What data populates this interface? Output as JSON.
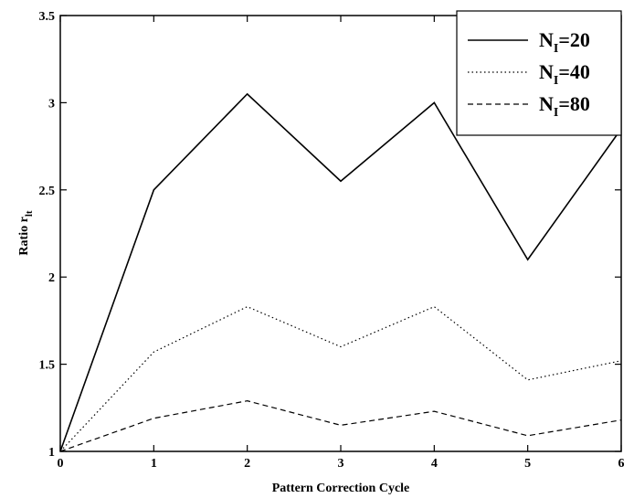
{
  "chart_data": {
    "type": "line",
    "title": "",
    "xlabel": "Pattern Correction Cycle",
    "ylabel_main": "Ratio r",
    "ylabel_sub": "lt",
    "x": [
      0,
      1,
      2,
      3,
      4,
      5,
      6
    ],
    "xlim": [
      0,
      6
    ],
    "ylim": [
      1,
      3.5
    ],
    "xticks": [
      "0",
      "1",
      "2",
      "3",
      "4",
      "5",
      "6"
    ],
    "yticks": [
      "1",
      "1.5",
      "2",
      "2.5",
      "3",
      "3.5"
    ],
    "grid": false,
    "legend_position": "top-right",
    "series": [
      {
        "name": "N",
        "name_sub": "I",
        "name_suffix": "=20",
        "style": "solid",
        "values": [
          1.0,
          2.5,
          3.05,
          2.55,
          3.0,
          2.1,
          2.85
        ]
      },
      {
        "name": "N",
        "name_sub": "I",
        "name_suffix": "=40",
        "style": "dotted",
        "values": [
          1.0,
          1.57,
          1.83,
          1.6,
          1.83,
          1.41,
          1.52
        ]
      },
      {
        "name": "N",
        "name_sub": "I",
        "name_suffix": "=80",
        "style": "dashed",
        "values": [
          1.0,
          1.19,
          1.29,
          1.15,
          1.23,
          1.09,
          1.18
        ]
      }
    ]
  }
}
